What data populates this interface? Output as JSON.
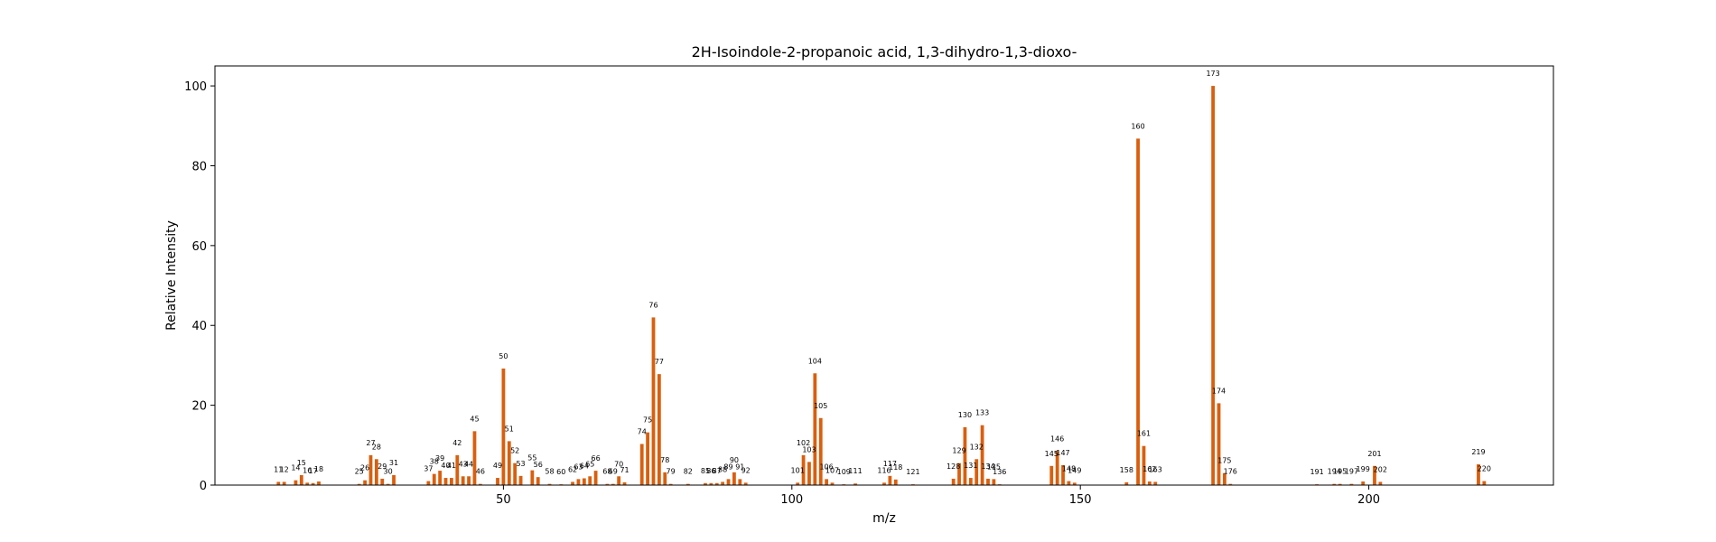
{
  "chart_data": {
    "type": "bar",
    "title": "2H-Isoindole-2-propanoic acid, 1,3-dihydro-1,3-dioxo-",
    "xlabel": "m/z",
    "ylabel": "Relative Intensity",
    "xlim": [
      0,
      232
    ],
    "ylim": [
      0,
      105
    ],
    "xticks": [
      50,
      100,
      150,
      200
    ],
    "yticks": [
      0,
      20,
      40,
      60,
      80,
      100
    ],
    "bar_color": "#d95f0e",
    "grid": false,
    "points": [
      {
        "x": 11,
        "y": 0.8
      },
      {
        "x": 12,
        "y": 0.8
      },
      {
        "x": 14,
        "y": 1.2
      },
      {
        "x": 15,
        "y": 2.5
      },
      {
        "x": 16,
        "y": 0.6
      },
      {
        "x": 17,
        "y": 0.5
      },
      {
        "x": 18,
        "y": 0.9
      },
      {
        "x": 25,
        "y": 0.3
      },
      {
        "x": 26,
        "y": 1.2
      },
      {
        "x": 27,
        "y": 7.5
      },
      {
        "x": 28,
        "y": 6.5
      },
      {
        "x": 29,
        "y": 1.6
      },
      {
        "x": 30,
        "y": 0.3
      },
      {
        "x": 31,
        "y": 2.5
      },
      {
        "x": 37,
        "y": 1.0
      },
      {
        "x": 38,
        "y": 2.8
      },
      {
        "x": 39,
        "y": 3.6
      },
      {
        "x": 40,
        "y": 1.8
      },
      {
        "x": 41,
        "y": 1.8
      },
      {
        "x": 42,
        "y": 7.5
      },
      {
        "x": 43,
        "y": 2.2
      },
      {
        "x": 44,
        "y": 2.2
      },
      {
        "x": 45,
        "y": 13.5
      },
      {
        "x": 46,
        "y": 0.3
      },
      {
        "x": 49,
        "y": 1.8
      },
      {
        "x": 50,
        "y": 29.2
      },
      {
        "x": 51,
        "y": 11.0
      },
      {
        "x": 52,
        "y": 5.5
      },
      {
        "x": 53,
        "y": 2.3
      },
      {
        "x": 55,
        "y": 3.7
      },
      {
        "x": 56,
        "y": 2.0
      },
      {
        "x": 58,
        "y": 0.3
      },
      {
        "x": 60,
        "y": 0.2
      },
      {
        "x": 62,
        "y": 0.8
      },
      {
        "x": 63,
        "y": 1.5
      },
      {
        "x": 64,
        "y": 1.7
      },
      {
        "x": 65,
        "y": 2.2
      },
      {
        "x": 66,
        "y": 3.6
      },
      {
        "x": 68,
        "y": 0.3
      },
      {
        "x": 69,
        "y": 0.3
      },
      {
        "x": 70,
        "y": 2.2
      },
      {
        "x": 71,
        "y": 0.7
      },
      {
        "x": 74,
        "y": 10.3
      },
      {
        "x": 75,
        "y": 13.2
      },
      {
        "x": 76,
        "y": 42.0
      },
      {
        "x": 77,
        "y": 27.8
      },
      {
        "x": 78,
        "y": 3.2
      },
      {
        "x": 79,
        "y": 0.3
      },
      {
        "x": 82,
        "y": 0.3
      },
      {
        "x": 85,
        "y": 0.5
      },
      {
        "x": 86,
        "y": 0.5
      },
      {
        "x": 87,
        "y": 0.5
      },
      {
        "x": 88,
        "y": 0.8
      },
      {
        "x": 89,
        "y": 1.5
      },
      {
        "x": 90,
        "y": 3.2
      },
      {
        "x": 91,
        "y": 1.5
      },
      {
        "x": 92,
        "y": 0.6
      },
      {
        "x": 101,
        "y": 0.6
      },
      {
        "x": 102,
        "y": 7.5
      },
      {
        "x": 103,
        "y": 5.8
      },
      {
        "x": 104,
        "y": 28.0
      },
      {
        "x": 105,
        "y": 16.8
      },
      {
        "x": 106,
        "y": 1.5
      },
      {
        "x": 107,
        "y": 0.6
      },
      {
        "x": 109,
        "y": 0.2
      },
      {
        "x": 111,
        "y": 0.4
      },
      {
        "x": 116,
        "y": 0.6
      },
      {
        "x": 117,
        "y": 2.3
      },
      {
        "x": 118,
        "y": 1.4
      },
      {
        "x": 121,
        "y": 0.2
      },
      {
        "x": 128,
        "y": 1.6
      },
      {
        "x": 129,
        "y": 5.5
      },
      {
        "x": 130,
        "y": 14.5
      },
      {
        "x": 131,
        "y": 1.8
      },
      {
        "x": 132,
        "y": 6.5
      },
      {
        "x": 133,
        "y": 15.0
      },
      {
        "x": 134,
        "y": 1.6
      },
      {
        "x": 135,
        "y": 1.5
      },
      {
        "x": 136,
        "y": 0.2
      },
      {
        "x": 145,
        "y": 4.8
      },
      {
        "x": 146,
        "y": 8.5
      },
      {
        "x": 147,
        "y": 5.0
      },
      {
        "x": 148,
        "y": 1.0
      },
      {
        "x": 149,
        "y": 0.6
      },
      {
        "x": 158,
        "y": 0.7
      },
      {
        "x": 160,
        "y": 86.8
      },
      {
        "x": 161,
        "y": 9.8
      },
      {
        "x": 162,
        "y": 0.9
      },
      {
        "x": 163,
        "y": 0.8
      },
      {
        "x": 173,
        "y": 100.0
      },
      {
        "x": 174,
        "y": 20.5
      },
      {
        "x": 175,
        "y": 3.0
      },
      {
        "x": 176,
        "y": 0.3
      },
      {
        "x": 191,
        "y": 0.2
      },
      {
        "x": 194,
        "y": 0.3
      },
      {
        "x": 195,
        "y": 0.3
      },
      {
        "x": 197,
        "y": 0.3
      },
      {
        "x": 199,
        "y": 0.9
      },
      {
        "x": 201,
        "y": 4.8
      },
      {
        "x": 202,
        "y": 0.8
      },
      {
        "x": 219,
        "y": 5.2
      },
      {
        "x": 220,
        "y": 1.0
      }
    ]
  }
}
